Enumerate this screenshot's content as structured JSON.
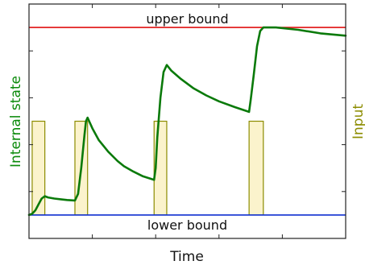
{
  "chart_data": {
    "type": "line",
    "xlabel": "Time",
    "ylabel": "Internal state",
    "y2label": "Input",
    "grid": false,
    "xlim": [
      0,
      10
    ],
    "ylim": [
      0,
      10
    ],
    "y2lim": [
      0,
      10
    ],
    "xticks": [
      0,
      2,
      4,
      6,
      8,
      10
    ],
    "yticks": [
      0,
      2,
      4,
      6,
      8,
      10
    ],
    "colors": {
      "state": "#0a7a0a",
      "upper": "#e01010",
      "lower": "#1030d0",
      "input_fill": "#fbf3cc",
      "input_stroke": "#8c8c00",
      "ylabel": "#0a8a0a",
      "y2label": "#8c8c00"
    },
    "upper_bound": {
      "label": "upper bound",
      "value": 9.0
    },
    "lower_bound": {
      "label": "lower bound",
      "value": 1.0
    },
    "input_pulses": [
      {
        "start": 0.1,
        "end": 0.5,
        "value": 5.0
      },
      {
        "start": 1.45,
        "end": 1.85,
        "value": 5.0
      },
      {
        "start": 3.95,
        "end": 4.35,
        "value": 5.0
      },
      {
        "start": 6.95,
        "end": 7.4,
        "value": 5.0
      }
    ],
    "series": [
      {
        "values": [
          [
            0.0,
            1.0
          ],
          [
            0.1,
            1.05
          ],
          [
            0.2,
            1.2
          ],
          [
            0.3,
            1.45
          ],
          [
            0.4,
            1.7
          ],
          [
            0.5,
            1.8
          ],
          [
            0.6,
            1.75
          ],
          [
            0.8,
            1.7
          ],
          [
            1.0,
            1.67
          ],
          [
            1.2,
            1.64
          ],
          [
            1.45,
            1.62
          ],
          [
            1.55,
            1.9
          ],
          [
            1.65,
            3.0
          ],
          [
            1.75,
            4.4
          ],
          [
            1.8,
            5.0
          ],
          [
            1.85,
            5.15
          ],
          [
            2.0,
            4.7
          ],
          [
            2.2,
            4.2
          ],
          [
            2.5,
            3.7
          ],
          [
            2.8,
            3.3
          ],
          [
            3.0,
            3.08
          ],
          [
            3.3,
            2.85
          ],
          [
            3.6,
            2.65
          ],
          [
            3.95,
            2.5
          ],
          [
            4.0,
            3.0
          ],
          [
            4.05,
            4.3
          ],
          [
            4.15,
            6.0
          ],
          [
            4.25,
            7.1
          ],
          [
            4.35,
            7.4
          ],
          [
            4.5,
            7.15
          ],
          [
            4.8,
            6.8
          ],
          [
            5.2,
            6.4
          ],
          [
            5.6,
            6.1
          ],
          [
            6.0,
            5.85
          ],
          [
            6.5,
            5.6
          ],
          [
            6.95,
            5.4
          ],
          [
            7.0,
            5.9
          ],
          [
            7.1,
            7.0
          ],
          [
            7.2,
            8.2
          ],
          [
            7.3,
            8.85
          ],
          [
            7.4,
            9.0
          ],
          [
            7.8,
            9.0
          ],
          [
            8.5,
            8.9
          ],
          [
            9.2,
            8.75
          ],
          [
            10.0,
            8.65
          ]
        ]
      }
    ]
  }
}
